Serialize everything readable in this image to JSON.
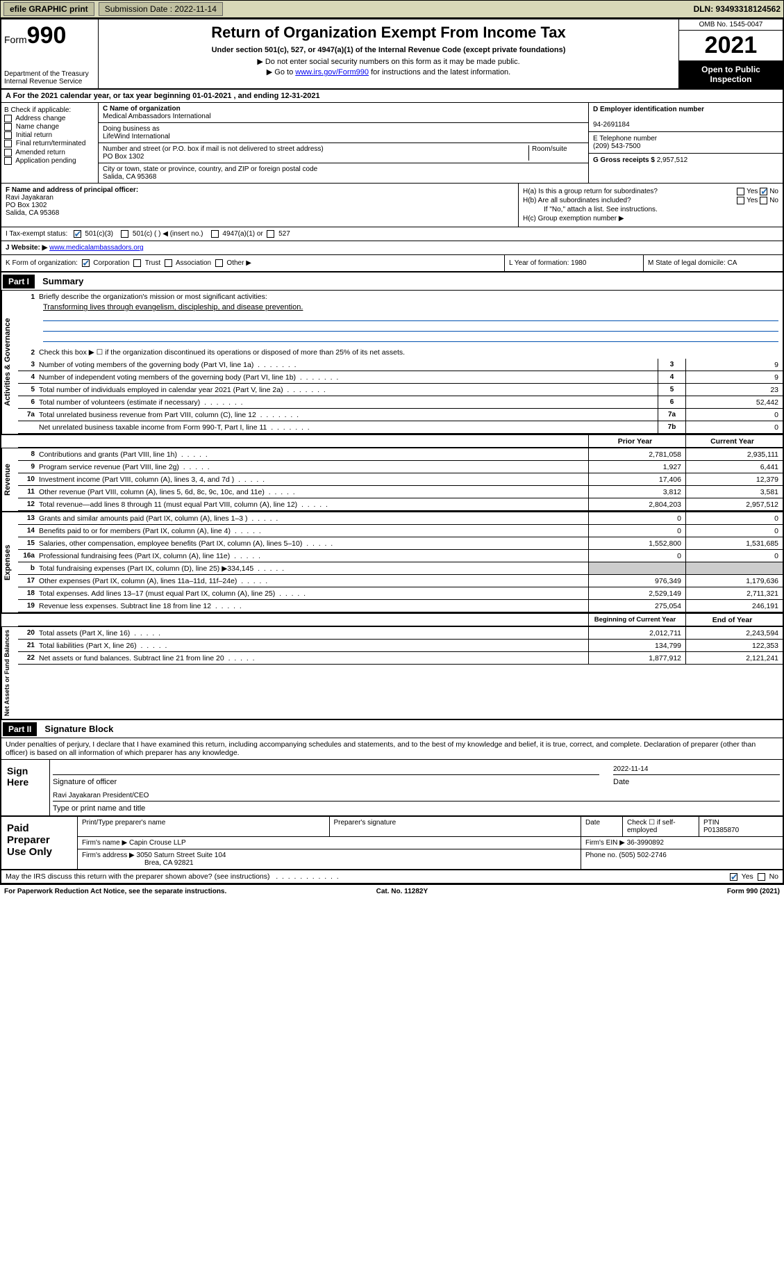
{
  "topbar": {
    "efile": "efile GRAPHIC print",
    "subdate_lbl": "Submission Date : 2022-11-14",
    "dln": "DLN: 93493318124562"
  },
  "hdr": {
    "form_small": "Form",
    "form_big": "990",
    "dept": "Department of the Treasury\nInternal Revenue Service",
    "title": "Return of Organization Exempt From Income Tax",
    "sub1": "Under section 501(c), 527, or 4947(a)(1) of the Internal Revenue Code (except private foundations)",
    "sub2": "▶ Do not enter social security numbers on this form as it may be made public.",
    "sub3_pre": "▶ Go to ",
    "sub3_link": "www.irs.gov/Form990",
    "sub3_post": " for instructions and the latest information.",
    "omb": "OMB No. 1545-0047",
    "year": "2021",
    "pub": "Open to Public Inspection"
  },
  "rowA": "A For the 2021 calendar year, or tax year beginning 01-01-2021   , and ending 12-31-2021",
  "colB": {
    "hdr": "B Check if applicable:",
    "items": [
      "Address change",
      "Name change",
      "Initial return",
      "Final return/terminated",
      "Amended return",
      "Application pending"
    ]
  },
  "colC": {
    "name_lbl": "C Name of organization",
    "name": "Medical Ambassadors International",
    "dba_lbl": "Doing business as",
    "dba": "LifeWind International",
    "addr_lbl": "Number and street (or P.O. box if mail is not delivered to street address)",
    "room_lbl": "Room/suite",
    "addr": "PO Box 1302",
    "city_lbl": "City or town, state or province, country, and ZIP or foreign postal code",
    "city": "Salida, CA  95368"
  },
  "colD": {
    "ein_lbl": "D Employer identification number",
    "ein": "94-2691184",
    "tel_lbl": "E Telephone number",
    "tel": "(209) 543-7500",
    "gross_lbl": "G Gross receipts $",
    "gross": "2,957,512"
  },
  "rowF": {
    "lbl": "F  Name and address of principal officer:",
    "name": "Ravi Jayakaran",
    "addr1": "PO Box 1302",
    "addr2": "Salida, CA  95368"
  },
  "rowH": {
    "a": "H(a)  Is this a group return for subordinates?",
    "b": "H(b)  Are all subordinates included?",
    "bnote": "If \"No,\" attach a list. See instructions.",
    "c": "H(c)  Group exemption number ▶"
  },
  "rowI": {
    "lbl": "I    Tax-exempt status:",
    "o1": "501(c)(3)",
    "o2": "501(c) (  ) ◀ (insert no.)",
    "o3": "4947(a)(1) or",
    "o4": "527"
  },
  "rowJ": {
    "lbl": "J    Website: ▶",
    "val": "www.medicalambassadors.org"
  },
  "rowK": {
    "k": "K Form of organization:",
    "corp": "Corporation",
    "trust": "Trust",
    "assoc": "Association",
    "other": "Other ▶",
    "l": "L Year of formation: 1980",
    "m": "M State of legal domicile: CA"
  },
  "partI": {
    "hdr": "Part I",
    "title": "Summary"
  },
  "gov": {
    "label": "Activities & Governance",
    "l1": "Briefly describe the organization's mission or most significant activities:",
    "l1b": "Transforming lives through evangelism, discipleship, and disease prevention.",
    "l2": "Check this box ▶  ☐  if the organization discontinued its operations or disposed of more than 25% of its net assets.",
    "rows": [
      {
        "n": "3",
        "t": "Number of voting members of the governing body (Part VI, line 1a)",
        "box": "3",
        "v": "9"
      },
      {
        "n": "4",
        "t": "Number of independent voting members of the governing body (Part VI, line 1b)",
        "box": "4",
        "v": "9"
      },
      {
        "n": "5",
        "t": "Total number of individuals employed in calendar year 2021 (Part V, line 2a)",
        "box": "5",
        "v": "23"
      },
      {
        "n": "6",
        "t": "Total number of volunteers (estimate if necessary)",
        "box": "6",
        "v": "52,442"
      },
      {
        "n": "7a",
        "t": "Total unrelated business revenue from Part VIII, column (C), line 12",
        "box": "7a",
        "v": "0"
      },
      {
        "n": "",
        "t": "Net unrelated business taxable income from Form 990-T, Part I, line 11",
        "box": "7b",
        "v": "0"
      }
    ]
  },
  "colhdr": {
    "prior": "Prior Year",
    "curr": "Current Year",
    "beg": "Beginning of Current Year",
    "end": "End of Year"
  },
  "rev": {
    "label": "Revenue",
    "rows": [
      {
        "n": "8",
        "t": "Contributions and grants (Part VIII, line 1h)",
        "p": "2,781,058",
        "c": "2,935,111"
      },
      {
        "n": "9",
        "t": "Program service revenue (Part VIII, line 2g)",
        "p": "1,927",
        "c": "6,441"
      },
      {
        "n": "10",
        "t": "Investment income (Part VIII, column (A), lines 3, 4, and 7d )",
        "p": "17,406",
        "c": "12,379"
      },
      {
        "n": "11",
        "t": "Other revenue (Part VIII, column (A), lines 5, 6d, 8c, 9c, 10c, and 11e)",
        "p": "3,812",
        "c": "3,581"
      },
      {
        "n": "12",
        "t": "Total revenue—add lines 8 through 11 (must equal Part VIII, column (A), line 12)",
        "p": "2,804,203",
        "c": "2,957,512"
      }
    ]
  },
  "exp": {
    "label": "Expenses",
    "rows": [
      {
        "n": "13",
        "t": "Grants and similar amounts paid (Part IX, column (A), lines 1–3 )",
        "p": "0",
        "c": "0"
      },
      {
        "n": "14",
        "t": "Benefits paid to or for members (Part IX, column (A), line 4)",
        "p": "0",
        "c": "0"
      },
      {
        "n": "15",
        "t": "Salaries, other compensation, employee benefits (Part IX, column (A), lines 5–10)",
        "p": "1,552,800",
        "c": "1,531,685"
      },
      {
        "n": "16a",
        "t": "Professional fundraising fees (Part IX, column (A), line 11e)",
        "p": "0",
        "c": "0"
      },
      {
        "n": "b",
        "t": "Total fundraising expenses (Part IX, column (D), line 25) ▶334,145",
        "p": "gray",
        "c": "gray"
      },
      {
        "n": "17",
        "t": "Other expenses (Part IX, column (A), lines 11a–11d, 11f–24e)",
        "p": "976,349",
        "c": "1,179,636"
      },
      {
        "n": "18",
        "t": "Total expenses. Add lines 13–17 (must equal Part IX, column (A), line 25)",
        "p": "2,529,149",
        "c": "2,711,321"
      },
      {
        "n": "19",
        "t": "Revenue less expenses. Subtract line 18 from line 12",
        "p": "275,054",
        "c": "246,191"
      }
    ]
  },
  "net": {
    "label": "Net Assets or Fund Balances",
    "rows": [
      {
        "n": "20",
        "t": "Total assets (Part X, line 16)",
        "p": "2,012,711",
        "c": "2,243,594"
      },
      {
        "n": "21",
        "t": "Total liabilities (Part X, line 26)",
        "p": "134,799",
        "c": "122,353"
      },
      {
        "n": "22",
        "t": "Net assets or fund balances. Subtract line 21 from line 20",
        "p": "1,877,912",
        "c": "2,121,241"
      }
    ]
  },
  "partII": {
    "hdr": "Part II",
    "title": "Signature Block",
    "decl": "Under penalties of perjury, I declare that I have examined this return, including accompanying schedules and statements, and to the best of my knowledge and belief, it is true, correct, and complete. Declaration of preparer (other than officer) is based on all information of which preparer has any knowledge."
  },
  "sign": {
    "lbl": "Sign Here",
    "sig": "Signature of officer",
    "date": "Date",
    "dateval": "2022-11-14",
    "name": "Ravi Jayakaran  President/CEO",
    "nametxt": "Type or print name and title"
  },
  "prep": {
    "lbl": "Paid Preparer Use Only",
    "h1": "Print/Type preparer's name",
    "h2": "Preparer's signature",
    "h3": "Date",
    "h4": "Check ☐ if self-employed",
    "h5": "PTIN",
    "ptin": "P01385870",
    "firm_lbl": "Firm's name   ▶",
    "firm": "Capin Crouse LLP",
    "ein_lbl": "Firm's EIN ▶",
    "ein": "36-3990892",
    "addr_lbl": "Firm's address ▶",
    "addr1": "3050 Saturn Street Suite 104",
    "addr2": "Brea, CA  92821",
    "ph_lbl": "Phone no.",
    "ph": "(505) 502-2746"
  },
  "bottom": {
    "q": "May the IRS discuss this return with the preparer shown above? (see instructions)",
    "yes": "Yes",
    "no": "No",
    "pra": "For Paperwork Reduction Act Notice, see the separate instructions.",
    "cat": "Cat. No. 11282Y",
    "form": "Form 990 (2021)"
  }
}
